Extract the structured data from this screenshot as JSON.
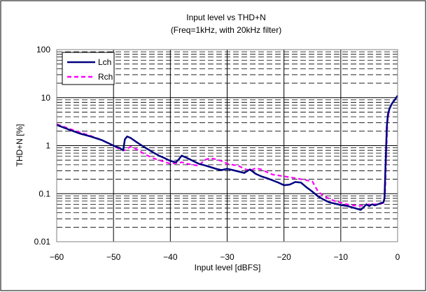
{
  "chart_data": {
    "type": "line",
    "title": "Input level vs THD+N",
    "subtitle": "(Freq=1kHz, with 20kHz filter)",
    "xlabel": "Input level [dBFS]",
    "ylabel": "THD+N [%]",
    "xlim": [
      -60,
      0
    ],
    "ylim": [
      0.01,
      100
    ],
    "yscale": "log",
    "x_ticks": [
      -60,
      -50,
      -40,
      -30,
      -20,
      -10,
      0
    ],
    "y_ticks": [
      0.01,
      0.1,
      1,
      10,
      100
    ],
    "x_tick_labels": [
      "-60",
      "-50",
      "-40",
      "-30",
      "-20",
      "-10",
      "0"
    ],
    "y_tick_labels": [
      "0.01",
      "0.1",
      "1",
      "10",
      "100"
    ],
    "grid": true,
    "legend_position": "top-left",
    "series": [
      {
        "name": "Lch",
        "color": "#000080",
        "dash": "solid",
        "x": [
          -60,
          -58,
          -56,
          -54,
          -52,
          -50,
          -49,
          -48.3,
          -48,
          -47.6,
          -47,
          -46,
          -45,
          -44,
          -43,
          -42,
          -41,
          -40,
          -39,
          -38.5,
          -38,
          -37,
          -36,
          -35,
          -34,
          -33,
          -32,
          -31,
          -30,
          -29,
          -28,
          -27,
          -26,
          -25,
          -24,
          -23,
          -22,
          -21,
          -20,
          -19,
          -18,
          -17,
          -16,
          -15,
          -14,
          -13,
          -12,
          -11,
          -10,
          -9,
          -8,
          -7,
          -6.5,
          -6,
          -5.5,
          -5,
          -4.5,
          -4,
          -3.5,
          -3,
          -2.5,
          -2.3,
          -2.1,
          -1.9,
          -1.7,
          -1.4,
          -1,
          -0.5,
          0
        ],
        "y": [
          2.7,
          2.2,
          1.8,
          1.55,
          1.3,
          1.0,
          0.9,
          0.8,
          1.35,
          1.55,
          1.45,
          1.2,
          1.0,
          0.85,
          0.72,
          0.62,
          0.55,
          0.48,
          0.45,
          0.52,
          0.62,
          0.55,
          0.48,
          0.42,
          0.39,
          0.36,
          0.33,
          0.31,
          0.33,
          0.31,
          0.29,
          0.27,
          0.32,
          0.26,
          0.23,
          0.21,
          0.19,
          0.17,
          0.15,
          0.155,
          0.175,
          0.17,
          0.135,
          0.11,
          0.088,
          0.075,
          0.066,
          0.062,
          0.058,
          0.056,
          0.052,
          0.048,
          0.046,
          0.052,
          0.06,
          0.055,
          0.06,
          0.057,
          0.06,
          0.063,
          0.066,
          0.08,
          0.5,
          2.5,
          4.5,
          6.0,
          7.5,
          9.0,
          11.0
        ]
      },
      {
        "name": "Rch",
        "color": "#ff00ff",
        "dash": "dashed",
        "x": [
          -60,
          -58,
          -56,
          -54,
          -52,
          -50,
          -49,
          -48,
          -47,
          -46,
          -45,
          -44,
          -43,
          -42,
          -41,
          -40,
          -39,
          -38,
          -37,
          -36,
          -35,
          -34,
          -33,
          -32,
          -31,
          -30,
          -29,
          -28,
          -27,
          -26,
          -25,
          -24,
          -23,
          -22,
          -21,
          -20,
          -19,
          -18,
          -17,
          -16,
          -15,
          -14,
          -13,
          -12,
          -11,
          -10,
          -9,
          -8,
          -7,
          -6,
          -5,
          -4,
          -3,
          -2.5,
          -2.2,
          -2,
          -1.8,
          -1.5,
          -1,
          -0.5,
          0
        ],
        "y": [
          2.8,
          2.3,
          1.9,
          1.6,
          1.3,
          1.0,
          0.85,
          0.8,
          0.95,
          0.85,
          0.72,
          0.62,
          0.55,
          0.5,
          0.46,
          0.42,
          0.43,
          0.45,
          0.42,
          0.4,
          0.38,
          0.5,
          0.55,
          0.52,
          0.48,
          0.42,
          0.4,
          0.38,
          0.33,
          0.3,
          0.34,
          0.32,
          0.28,
          0.25,
          0.24,
          0.23,
          0.22,
          0.21,
          0.2,
          0.19,
          0.18,
          0.11,
          0.09,
          0.078,
          0.07,
          0.065,
          0.06,
          0.058,
          0.055,
          0.057,
          0.06,
          0.06,
          0.062,
          0.064,
          0.1,
          0.6,
          3.0,
          5.5,
          7.5,
          9.0,
          10.0
        ]
      }
    ]
  }
}
